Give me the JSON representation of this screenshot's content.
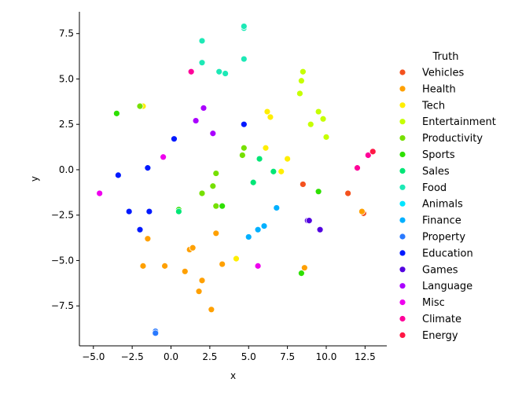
{
  "chart_data": {
    "type": "scatter",
    "xlabel": "x",
    "ylabel": "y",
    "xlim": [
      -5.9,
      13.9
    ],
    "ylim": [
      -9.7,
      8.7
    ],
    "xticks": [
      -5.0,
      -2.5,
      0.0,
      2.5,
      5.0,
      7.5,
      10.0,
      12.5
    ],
    "xtick_labels": [
      "−5.0",
      "−2.5",
      "0.0",
      "2.5",
      "5.0",
      "7.5",
      "10.0",
      "12.5"
    ],
    "yticks": [
      -7.5,
      -5.0,
      -2.5,
      0.0,
      2.5,
      5.0,
      7.5
    ],
    "ytick_labels": [
      "−7.5",
      "−5.0",
      "−2.5",
      "0.0",
      "2.5",
      "5.0",
      "7.5"
    ],
    "grid": false,
    "legend": {
      "title": "Truth",
      "placement": "right"
    },
    "series": [
      {
        "name": "Vehicles",
        "color": "#f4511e",
        "points": [
          [
            8.5,
            -0.8
          ],
          [
            11.4,
            -1.3
          ],
          [
            12.4,
            -2.4
          ]
        ]
      },
      {
        "name": "Health",
        "color": "#ffa000",
        "points": [
          [
            -1.5,
            -3.8
          ],
          [
            -1.8,
            -5.3
          ],
          [
            -0.4,
            -5.3
          ],
          [
            0.9,
            -5.6
          ],
          [
            1.2,
            -4.4
          ],
          [
            1.4,
            -4.3
          ],
          [
            2.9,
            -3.5
          ],
          [
            3.3,
            -5.2
          ],
          [
            2.0,
            -6.1
          ],
          [
            1.8,
            -6.7
          ],
          [
            2.6,
            -7.7
          ],
          [
            8.6,
            -5.4
          ],
          [
            12.3,
            -2.3
          ]
        ]
      },
      {
        "name": "Tech",
        "color": "#ffee00",
        "points": [
          [
            -1.8,
            3.5
          ],
          [
            4.2,
            -4.9
          ],
          [
            6.1,
            1.2
          ],
          [
            6.2,
            3.2
          ],
          [
            6.4,
            2.9
          ],
          [
            7.1,
            -0.1
          ],
          [
            7.5,
            0.6
          ]
        ]
      },
      {
        "name": "Entertainment",
        "color": "#c6ff00",
        "points": [
          [
            8.3,
            4.2
          ],
          [
            8.4,
            4.9
          ],
          [
            8.5,
            5.4
          ],
          [
            9.0,
            2.5
          ],
          [
            9.5,
            3.2
          ],
          [
            9.8,
            2.8
          ],
          [
            10.0,
            1.8
          ]
        ]
      },
      {
        "name": "Productivity",
        "color": "#76e000",
        "points": [
          [
            -2.0,
            3.5
          ],
          [
            2.0,
            -1.3
          ],
          [
            2.7,
            -0.9
          ],
          [
            2.9,
            -0.2
          ],
          [
            2.9,
            -2.0
          ],
          [
            4.6,
            0.8
          ],
          [
            4.7,
            1.2
          ]
        ]
      },
      {
        "name": "Sports",
        "color": "#2ee000",
        "points": [
          [
            -3.5,
            3.1
          ],
          [
            0.5,
            -2.2
          ],
          [
            3.3,
            -2.0
          ],
          [
            8.4,
            -5.7
          ],
          [
            9.5,
            -1.2
          ]
        ]
      },
      {
        "name": "Sales",
        "color": "#00e676",
        "points": [
          [
            0.5,
            -2.3
          ],
          [
            5.3,
            -0.7
          ],
          [
            5.7,
            0.6
          ],
          [
            6.6,
            -0.1
          ]
        ]
      },
      {
        "name": "Food",
        "color": "#1de9b6",
        "points": [
          [
            2.0,
            7.1
          ],
          [
            2.0,
            5.9
          ],
          [
            3.1,
            5.4
          ],
          [
            3.5,
            5.3
          ],
          [
            4.7,
            6.1
          ],
          [
            4.7,
            7.8
          ],
          [
            4.7,
            7.9
          ]
        ]
      },
      {
        "name": "Animals",
        "color": "#00e5ff",
        "points": []
      },
      {
        "name": "Finance",
        "color": "#00b0ff",
        "points": [
          [
            5.0,
            -3.7
          ],
          [
            5.6,
            -3.3
          ],
          [
            6.0,
            -3.1
          ],
          [
            6.8,
            -2.1
          ]
        ]
      },
      {
        "name": "Property",
        "color": "#2979ff",
        "points": [
          [
            -1.0,
            -8.9
          ],
          [
            -1.0,
            -9.0
          ]
        ]
      },
      {
        "name": "Education",
        "color": "#0019ff",
        "points": [
          [
            -3.4,
            -0.3
          ],
          [
            -2.7,
            -2.3
          ],
          [
            -2.0,
            -3.3
          ],
          [
            -1.4,
            -2.3
          ],
          [
            -1.5,
            0.1
          ],
          [
            0.2,
            1.7
          ],
          [
            4.7,
            2.5
          ]
        ]
      },
      {
        "name": "Games",
        "color": "#5200e0",
        "points": [
          [
            8.8,
            -2.8
          ],
          [
            8.9,
            -2.8
          ],
          [
            9.6,
            -3.3
          ]
        ]
      },
      {
        "name": "Language",
        "color": "#aa00ff",
        "points": [
          [
            1.6,
            2.7
          ],
          [
            2.1,
            3.4
          ],
          [
            2.7,
            2.0
          ]
        ]
      },
      {
        "name": "Misc",
        "color": "#ee00ee",
        "points": [
          [
            -4.6,
            -1.3
          ],
          [
            -0.5,
            0.7
          ],
          [
            5.6,
            -5.3
          ]
        ]
      },
      {
        "name": "Climate",
        "color": "#ff0099",
        "points": [
          [
            1.3,
            5.4
          ],
          [
            12.0,
            0.1
          ],
          [
            12.7,
            0.8
          ]
        ]
      },
      {
        "name": "Energy",
        "color": "#ff1744",
        "points": [
          [
            13.0,
            1.0
          ]
        ]
      }
    ]
  }
}
